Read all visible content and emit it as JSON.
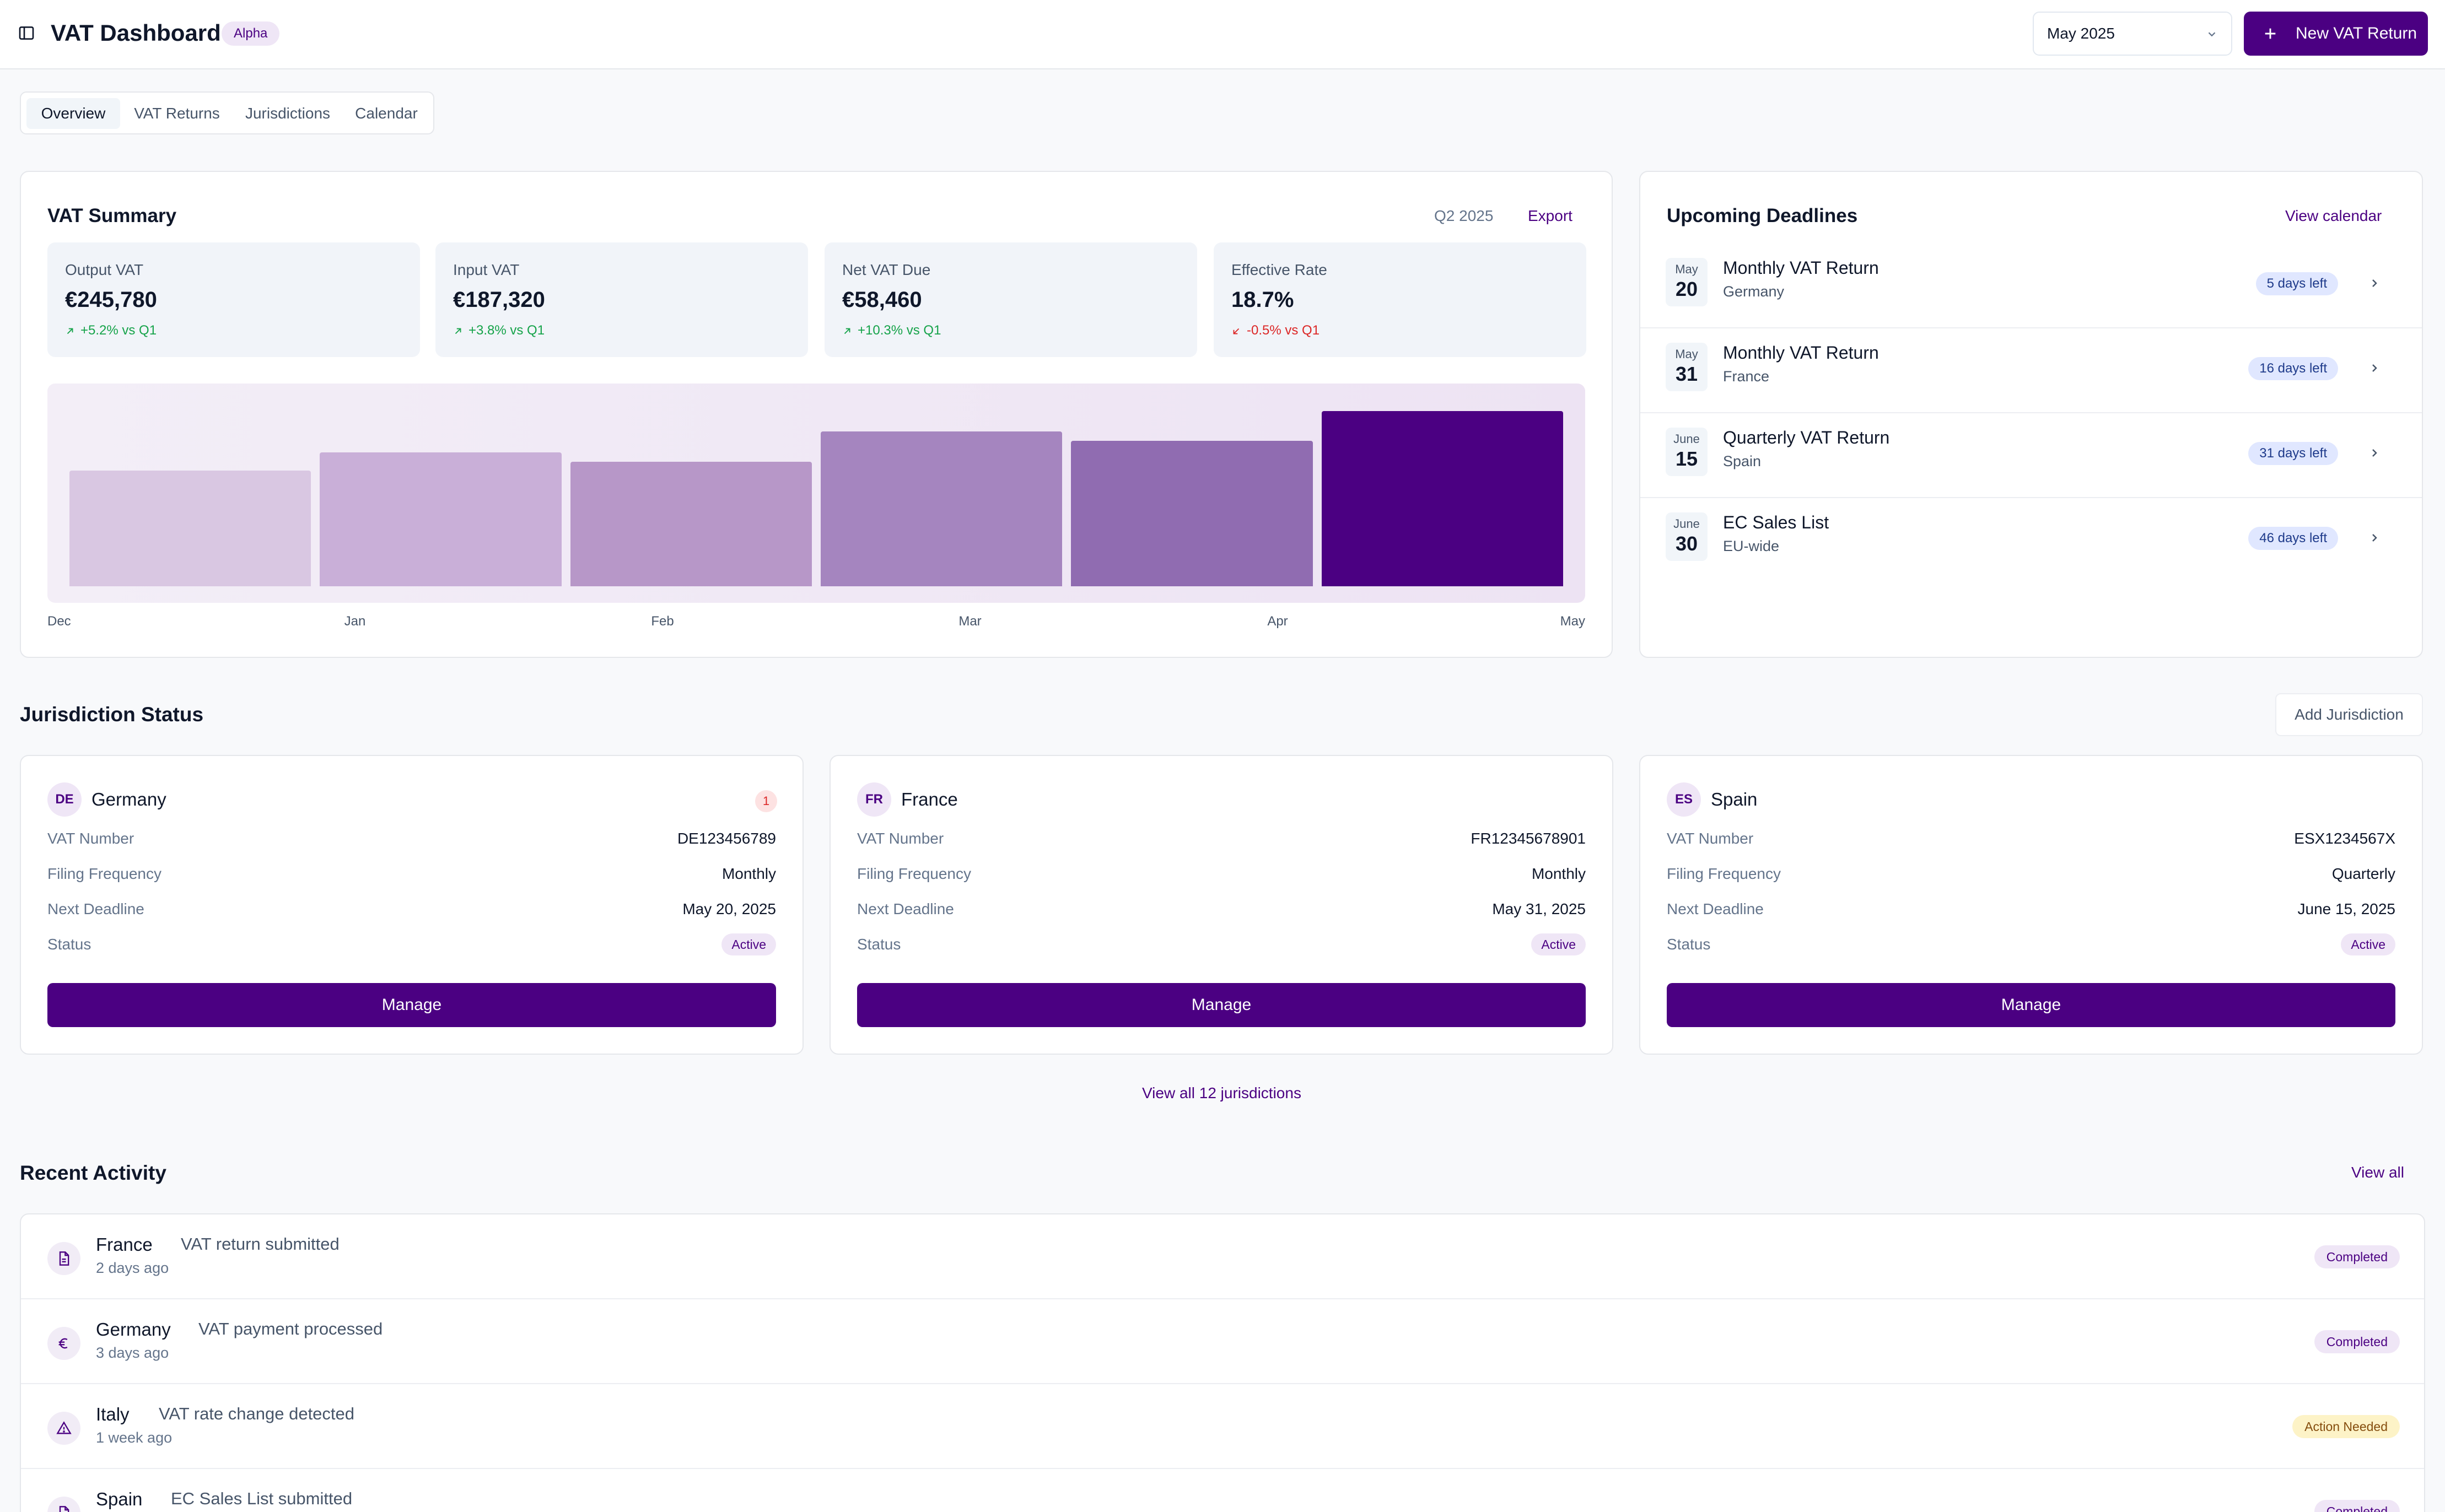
{
  "header": {
    "title": "VAT Dashboard",
    "badge": "Alpha",
    "period_select": "May 2025",
    "new_return_label": "New VAT Return"
  },
  "tabs": [
    {
      "label": "Overview",
      "active": true
    },
    {
      "label": "VAT Returns",
      "active": false
    },
    {
      "label": "Jurisdictions",
      "active": false
    },
    {
      "label": "Calendar",
      "active": false
    }
  ],
  "vat_summary": {
    "title": "VAT Summary",
    "period": "Q2 2025",
    "export_label": "Export",
    "stats": [
      {
        "label": "Output VAT",
        "value": "€245,780",
        "trend": "+5.2% vs Q1",
        "direction": "up"
      },
      {
        "label": "Input VAT",
        "value": "€187,320",
        "trend": "+3.8% vs Q1",
        "direction": "up"
      },
      {
        "label": "Net VAT Due",
        "value": "€58,460",
        "trend": "+10.3% vs Q1",
        "direction": "up"
      },
      {
        "label": "Effective Rate",
        "value": "18.7%",
        "trend": "-0.5% vs Q1",
        "direction": "down"
      }
    ]
  },
  "chart_data": {
    "type": "bar",
    "title": "",
    "categories": [
      "Dec",
      "Jan",
      "Feb",
      "Mar",
      "Apr",
      "May"
    ],
    "values": [
      62,
      72,
      67,
      83,
      78,
      94
    ],
    "ylim": [
      0,
      100
    ],
    "xlabel": "",
    "ylabel": "",
    "grid": false,
    "bar_colors": [
      "#d9c7e2",
      "#c9afd8",
      "#b797c8",
      "#a585bf",
      "#906cb1",
      "#4b0082"
    ]
  },
  "deadlines": {
    "title": "Upcoming Deadlines",
    "view_calendar_label": "View calendar",
    "items": [
      {
        "month": "May",
        "day": "20",
        "title": "Monthly VAT Return",
        "subtitle": "Germany",
        "days_left": "5 days left"
      },
      {
        "month": "May",
        "day": "31",
        "title": "Monthly VAT Return",
        "subtitle": "France",
        "days_left": "16 days left"
      },
      {
        "month": "June",
        "day": "15",
        "title": "Quarterly VAT Return",
        "subtitle": "Spain",
        "days_left": "31 days left"
      },
      {
        "month": "June",
        "day": "30",
        "title": "EC Sales List",
        "subtitle": "EU-wide",
        "days_left": "46 days left"
      }
    ]
  },
  "jurisdictions": {
    "title": "Jurisdiction Status",
    "add_label": "Add Jurisdiction",
    "view_all_label": "View all 12 jurisdictions",
    "field_labels": {
      "vat_number": "VAT Number",
      "filing_frequency": "Filing Frequency",
      "next_deadline": "Next Deadline",
      "status": "Status"
    },
    "manage_label": "Manage",
    "items": [
      {
        "code": "DE",
        "name": "Germany",
        "alert": "1",
        "vat_number": "DE123456789",
        "frequency": "Monthly",
        "deadline": "May 20, 2025",
        "status": "Active"
      },
      {
        "code": "FR",
        "name": "France",
        "alert": "",
        "vat_number": "FR12345678901",
        "frequency": "Monthly",
        "deadline": "May 31, 2025",
        "status": "Active"
      },
      {
        "code": "ES",
        "name": "Spain",
        "alert": "",
        "vat_number": "ESX1234567X",
        "frequency": "Quarterly",
        "deadline": "June 15, 2025",
        "status": "Active"
      }
    ]
  },
  "activity": {
    "title": "Recent Activity",
    "view_all_label": "View all",
    "items": [
      {
        "country": "France",
        "text": "VAT return submitted",
        "time": "2 days ago",
        "status": "Completed",
        "icon": "file-icon"
      },
      {
        "country": "Germany",
        "text": "VAT payment processed",
        "time": "3 days ago",
        "status": "Completed",
        "icon": "euro-icon"
      },
      {
        "country": "Italy",
        "text": "VAT rate change detected",
        "time": "1 week ago",
        "status": "Action Needed",
        "icon": "warning-icon"
      },
      {
        "country": "Spain",
        "text": "EC Sales List submitted",
        "time": "",
        "status": "Completed",
        "icon": "file-icon"
      }
    ]
  }
}
